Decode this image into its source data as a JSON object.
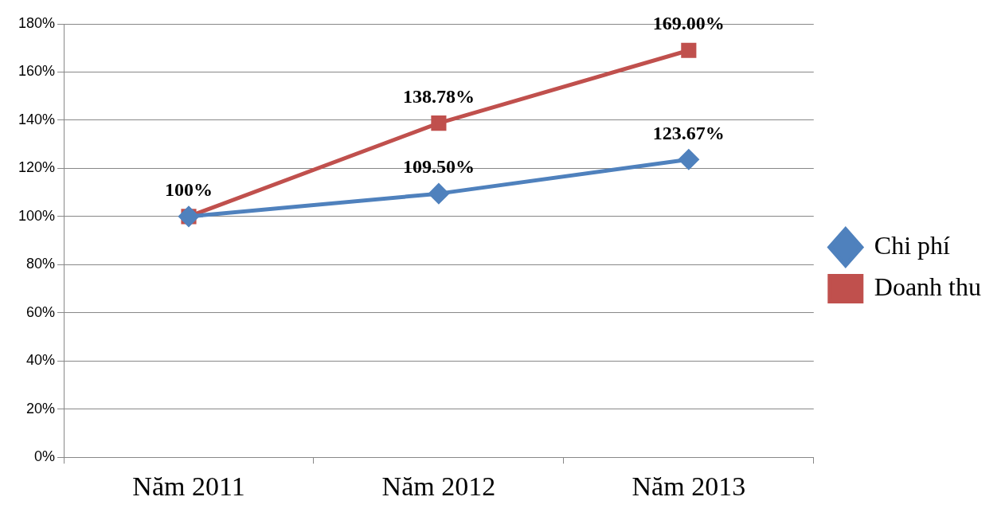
{
  "chart_data": {
    "type": "line",
    "categories": [
      "Năm 2011",
      "Năm 2012",
      "Năm 2013"
    ],
    "series": [
      {
        "name": "Chi phí",
        "color": "#4f81bd",
        "marker": "diamond",
        "values": [
          100,
          109.5,
          123.67
        ],
        "value_labels": [
          null,
          "109.50%",
          "123.67%"
        ]
      },
      {
        "name": "Doanh thu",
        "color": "#c0504d",
        "marker": "square",
        "values": [
          100,
          138.78,
          169
        ],
        "value_labels": [
          "100%",
          "138.78%",
          "169.00%"
        ]
      }
    ],
    "ylim": [
      0,
      180
    ],
    "yticks": [
      {
        "value": 0,
        "label": "0%"
      },
      {
        "value": 20,
        "label": "20%"
      },
      {
        "value": 40,
        "label": "40%"
      },
      {
        "value": 60,
        "label": "60%"
      },
      {
        "value": 80,
        "label": "80%"
      },
      {
        "value": 100,
        "label": "100%"
      },
      {
        "value": 120,
        "label": "120%"
      },
      {
        "value": 140,
        "label": "140%"
      },
      {
        "value": 160,
        "label": "160%"
      },
      {
        "value": 180,
        "label": "180%"
      }
    ],
    "grid": "y",
    "legend": "right",
    "line_style": "solid"
  }
}
